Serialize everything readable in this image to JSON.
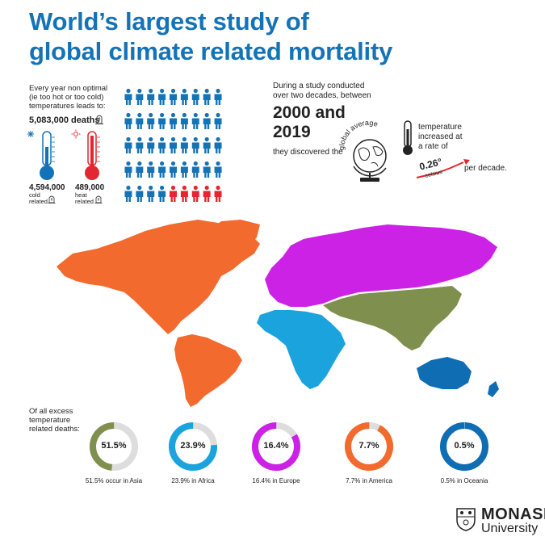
{
  "title": {
    "line1": "World’s largest study of",
    "line2": "global climate related mortality"
  },
  "intro": {
    "line1": "Every year non optimal",
    "line2": "(ie too hot or too cold)",
    "line3": "temperatures leads to:",
    "total": "5,083,000 deaths"
  },
  "cold": {
    "value": "4,594,000",
    "label1": "cold",
    "label2": "related"
  },
  "heat": {
    "value": "489,000",
    "label1": "heat",
    "label2": "related"
  },
  "people": {
    "rows": 5,
    "cols": 9,
    "hot_count": 5,
    "cold_color": "#1473b7",
    "hot_color": "#e3262f"
  },
  "study": {
    "line1": "During a study conducted",
    "line2": "over two decades, between",
    "years1": "2000 and",
    "years2": "2019",
    "discovered": "they discovered the",
    "globe_label": "global average",
    "temp1": "temperature",
    "temp2": "increased at",
    "temp3": "a rate of",
    "rate": "0.26°",
    "rate_unit": "celsius",
    "per_decade": "per decade."
  },
  "share_heading": {
    "line1": "Of all excess",
    "line2": "temperature",
    "line3": "related deaths:"
  },
  "regions": [
    {
      "pct": "51.5%",
      "caption": "51.5% occur in Asia",
      "value": 51.5,
      "color": "#7f8f4e"
    },
    {
      "pct": "23.9%",
      "caption": "23.9% in Africa",
      "value": 23.9,
      "color": "#1aa3dd"
    },
    {
      "pct": "16.4%",
      "caption": "16.4% in Europe",
      "value": 16.4,
      "color": "#cc22e6"
    },
    {
      "pct": "7.7%",
      "caption": "7.7% in America",
      "value": 7.7,
      "color": "#f26a2e"
    },
    {
      "pct": "0.5%",
      "caption": "0.5% in Oceania",
      "value": 0.5,
      "color": "#0f6db3"
    }
  ],
  "map_colors": {
    "america": "#f26a2e",
    "europe": "#cc22e6",
    "africa": "#1aa3dd",
    "asia": "#7f8f4e",
    "oceania": "#0f6db3"
  },
  "logo": {
    "name": "MONASH",
    "sub": "University"
  },
  "icons": {
    "tombstone": "tombstone-icon",
    "snowflake": "snowflake-icon",
    "sun": "sun-icon",
    "globe": "globe-icon",
    "thermometer": "thermometer-icon",
    "crest": "monash-crest-icon"
  }
}
